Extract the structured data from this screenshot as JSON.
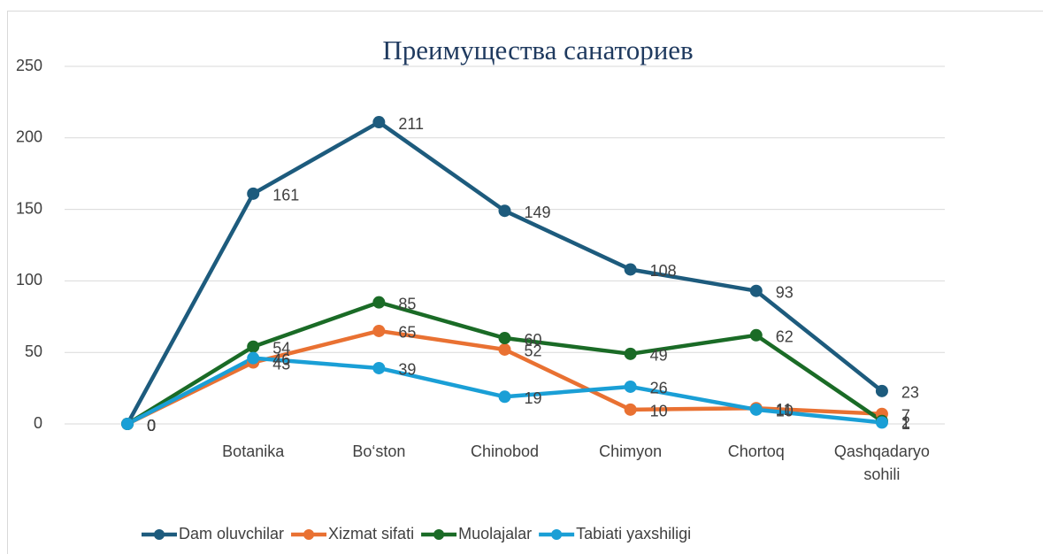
{
  "chart_data": {
    "type": "line",
    "title": "Преимущества санаториев",
    "categories": [
      null,
      "Botanika",
      "Bo‘ston",
      "Chinobod",
      "Chimyon",
      "Chortoq",
      "Qashqadaryo sohili"
    ],
    "series": [
      {
        "name": "Dam oluvchilar",
        "color": "#1d5b7d",
        "values": [
          0,
          161,
          211,
          149,
          108,
          93,
          23
        ]
      },
      {
        "name": "Xizmat sifati",
        "color": "#e97132",
        "values": [
          0,
          43,
          65,
          52,
          10,
          11,
          7
        ]
      },
      {
        "name": "Muolajalar",
        "color": "#1a6b26",
        "values": [
          0,
          54,
          85,
          60,
          49,
          62,
          2
        ]
      },
      {
        "name": "Tabiati yaxshiligi",
        "color": "#1a9fd6",
        "values": [
          0,
          46,
          39,
          19,
          26,
          10,
          1
        ]
      }
    ],
    "ylim": [
      0,
      250
    ],
    "yticks": [
      0,
      50,
      100,
      150,
      200,
      250
    ],
    "grid": true,
    "legend": "bottom"
  }
}
